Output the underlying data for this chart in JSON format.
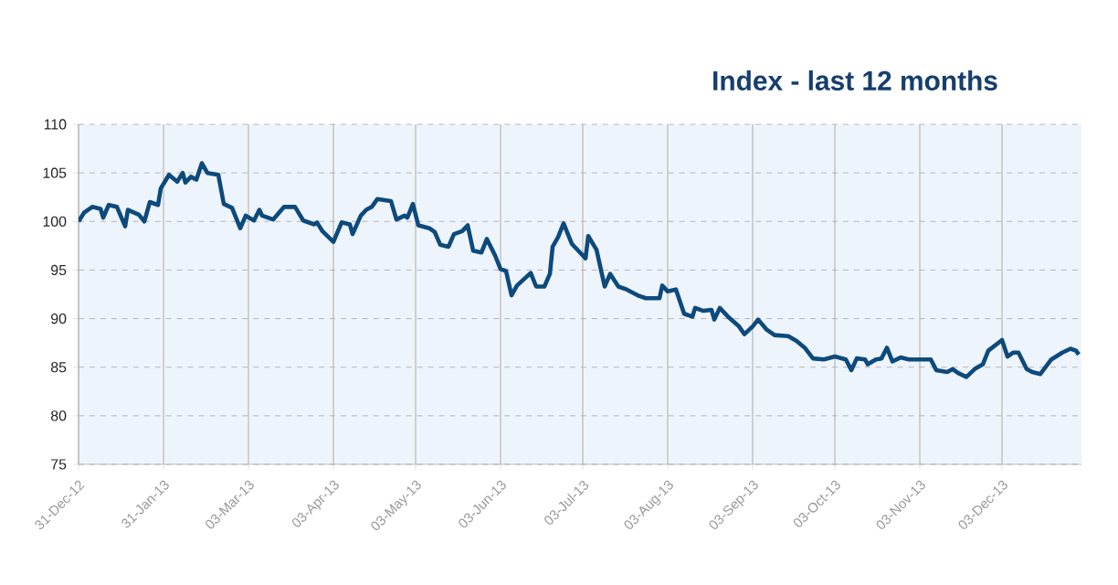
{
  "chart_data": {
    "type": "line",
    "title": "Index - last 12 months",
    "x": [
      "2012-12-31",
      "2013-01-02",
      "2013-01-05",
      "2013-01-08",
      "2013-01-09",
      "2013-01-11",
      "2013-01-14",
      "2013-01-17",
      "2013-01-18",
      "2013-01-22",
      "2013-01-24",
      "2013-01-26",
      "2013-01-29",
      "2013-01-30",
      "2013-02-02",
      "2013-02-05",
      "2013-02-07",
      "2013-02-08",
      "2013-02-10",
      "2013-02-12",
      "2013-02-14",
      "2013-02-16",
      "2013-02-20",
      "2013-02-22",
      "2013-02-25",
      "2013-02-28",
      "2013-03-02",
      "2013-03-05",
      "2013-03-07",
      "2013-03-08",
      "2013-03-12",
      "2013-03-16",
      "2013-03-20",
      "2013-03-23",
      "2013-03-27",
      "2013-03-28",
      "2013-03-30",
      "2013-04-03",
      "2013-04-06",
      "2013-04-09",
      "2013-04-10",
      "2013-04-13",
      "2013-04-15",
      "2013-04-17",
      "2013-04-19",
      "2013-04-24",
      "2013-04-26",
      "2013-04-29",
      "2013-04-30",
      "2013-05-02",
      "2013-05-04",
      "2013-05-08",
      "2013-05-10",
      "2013-05-12",
      "2013-05-15",
      "2013-05-17",
      "2013-05-20",
      "2013-05-22",
      "2013-05-24",
      "2013-05-27",
      "2013-05-29",
      "2013-06-01",
      "2013-06-03",
      "2013-06-05",
      "2013-06-07",
      "2013-06-09",
      "2013-06-14",
      "2013-06-16",
      "2013-06-19",
      "2013-06-21",
      "2013-06-22",
      "2013-06-24",
      "2013-06-26",
      "2013-06-29",
      "2013-07-02",
      "2013-07-04",
      "2013-07-05",
      "2013-07-08",
      "2013-07-11",
      "2013-07-13",
      "2013-07-16",
      "2013-07-19",
      "2013-07-23",
      "2013-07-26",
      "2013-07-31",
      "2013-08-01",
      "2013-08-03",
      "2013-08-06",
      "2013-08-09",
      "2013-08-12",
      "2013-08-13",
      "2013-08-16",
      "2013-08-19",
      "2013-08-20",
      "2013-08-22",
      "2013-08-25",
      "2013-08-29",
      "2013-08-31",
      "2013-09-03",
      "2013-09-05",
      "2013-09-08",
      "2013-09-11",
      "2013-09-16",
      "2013-09-19",
      "2013-09-22",
      "2013-09-25",
      "2013-09-29",
      "2013-10-03",
      "2013-10-07",
      "2013-10-09",
      "2013-10-11",
      "2013-10-14",
      "2013-10-15",
      "2013-10-18",
      "2013-10-20",
      "2013-10-22",
      "2013-10-24",
      "2013-10-27",
      "2013-10-30",
      "2013-11-03",
      "2013-11-07",
      "2013-11-09",
      "2013-11-13",
      "2013-11-15",
      "2013-11-17",
      "2013-11-20",
      "2013-11-23",
      "2013-11-26",
      "2013-11-28",
      "2013-12-03",
      "2013-12-05",
      "2013-12-07",
      "2013-12-09",
      "2013-12-12",
      "2013-12-14",
      "2013-12-17",
      "2013-12-21",
      "2013-12-25",
      "2013-12-28",
      "2013-12-30",
      "2013-12-31"
    ],
    "series": [
      {
        "color": "#0d4a7c",
        "values": [
          100.0,
          100.9,
          101.5,
          101.3,
          100.4,
          101.7,
          101.5,
          99.5,
          101.2,
          100.7,
          100.0,
          102.0,
          101.7,
          103.4,
          104.8,
          104.1,
          105.0,
          104.0,
          104.6,
          104.3,
          106.0,
          105.0,
          104.8,
          101.8,
          101.4,
          99.3,
          100.6,
          100.1,
          101.2,
          100.6,
          100.2,
          101.5,
          101.5,
          100.1,
          99.7,
          99.9,
          99.0,
          97.9,
          99.9,
          99.7,
          98.7,
          100.6,
          101.2,
          101.5,
          102.3,
          102.1,
          100.2,
          100.6,
          100.4,
          101.8,
          99.6,
          99.3,
          98.9,
          97.6,
          97.4,
          98.7,
          99.0,
          99.6,
          97.0,
          96.8,
          98.2,
          96.5,
          95.1,
          94.9,
          92.4,
          93.4,
          94.7,
          93.3,
          93.3,
          94.6,
          97.4,
          98.4,
          99.8,
          97.7,
          96.8,
          96.2,
          98.5,
          97.1,
          93.3,
          94.6,
          93.3,
          93.0,
          92.4,
          92.1,
          92.1,
          93.4,
          92.8,
          93.0,
          90.5,
          90.2,
          91.1,
          90.8,
          90.9,
          89.9,
          91.1,
          90.2,
          89.2,
          88.4,
          89.2,
          89.9,
          88.9,
          88.3,
          88.2,
          87.7,
          87.0,
          85.9,
          85.8,
          86.1,
          85.8,
          84.7,
          85.9,
          85.8,
          85.3,
          85.8,
          85.9,
          87.0,
          85.6,
          86.0,
          85.8,
          85.8,
          85.8,
          84.7,
          84.5,
          84.8,
          84.4,
          84.0,
          84.8,
          85.3,
          86.7,
          87.8,
          86.1,
          86.5,
          86.5,
          84.8,
          84.5,
          84.3,
          85.8,
          86.5,
          86.9,
          86.7,
          86.3
        ]
      }
    ],
    "xlim": [
      "2012-12-31",
      "2014-01-01"
    ],
    "ylim": [
      75,
      110
    ],
    "xticks": [
      {
        "value": "2012-12-31",
        "label": "31-Dec-12"
      },
      {
        "value": "2013-01-31",
        "label": "31-Jan-13"
      },
      {
        "value": "2013-03-03",
        "label": "03-Mar-13"
      },
      {
        "value": "2013-04-03",
        "label": "03-Apr-13"
      },
      {
        "value": "2013-05-03",
        "label": "03-May-13"
      },
      {
        "value": "2013-06-03",
        "label": "03-Jun-13"
      },
      {
        "value": "2013-07-03",
        "label": "03-Jul-13"
      },
      {
        "value": "2013-08-03",
        "label": "03-Aug-13"
      },
      {
        "value": "2013-09-03",
        "label": "03-Sep-13"
      },
      {
        "value": "2013-10-03",
        "label": "03-Oct-13"
      },
      {
        "value": "2013-11-03",
        "label": "03-Nov-13"
      },
      {
        "value": "2013-12-03",
        "label": "03-Dec-13"
      }
    ],
    "yticks": [
      75,
      80,
      85,
      90,
      95,
      100,
      105,
      110
    ],
    "grid": true
  }
}
